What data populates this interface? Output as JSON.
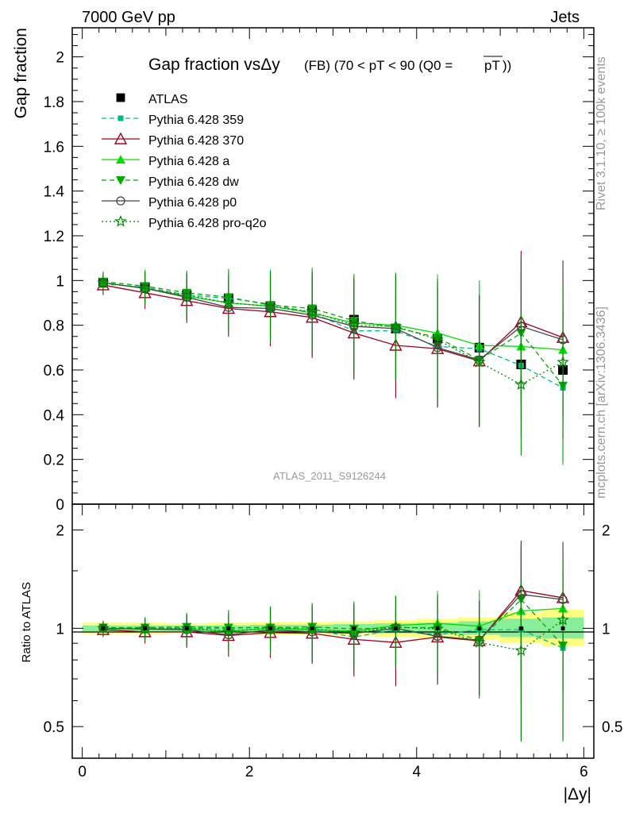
{
  "header": {
    "left": "7000 GeV pp",
    "right": "Jets",
    "side_rivet": "Rivet 3.1.10, ≥ 100k events",
    "side_mcplots": "mcplots.cern.ch [arXiv:1306.3436]"
  },
  "chart_data": [
    {
      "type": "line",
      "title_main": "Gap fraction vsΔy",
      "title_sub": "(FB) (70 < pT <  90 (Q0 =",
      "title_pt": "pT",
      "title_end": "))",
      "ylabel": "Gap fraction",
      "watermark": "ATLAS_2011_S9126244",
      "ylim": [
        0,
        2.13
      ],
      "y_ticks": [
        "0",
        "0.2",
        "0.4",
        "0.6",
        "0.8",
        "1",
        "1.2",
        "1.4",
        "1.6",
        "1.8",
        "2"
      ],
      "x": [
        0.25,
        0.75,
        1.25,
        1.75,
        2.25,
        2.75,
        3.25,
        3.75,
        4.25,
        4.75,
        5.25,
        5.75
      ],
      "legend_position": "top-left",
      "series": [
        {
          "name": "ATLAS",
          "color": "#000000",
          "marker": "square",
          "line": "none",
          "values": [
            0.99,
            0.97,
            0.935,
            0.92,
            0.885,
            0.865,
            0.825,
            0.785,
            0.74,
            0.7,
            0.625,
            0.6
          ]
        },
        {
          "name": "Pythia 6.428 359",
          "color": "#00bb88",
          "marker": "square-small",
          "line": "dashed",
          "values": [
            0.985,
            0.97,
            0.935,
            0.92,
            0.895,
            0.855,
            0.775,
            0.775,
            0.705,
            0.695,
            0.62,
            0.52
          ]
        },
        {
          "name": "Pythia 6.428 370",
          "color": "#a00020",
          "marker": "triangle-open",
          "line": "solid",
          "values": [
            0.98,
            0.945,
            0.91,
            0.875,
            0.86,
            0.835,
            0.765,
            0.71,
            0.695,
            0.64,
            0.815,
            0.745
          ]
        },
        {
          "name": "Pythia 6.428 a",
          "color": "#00dd00",
          "marker": "triangle-filled",
          "line": "solid",
          "values": [
            0.99,
            0.965,
            0.93,
            0.9,
            0.885,
            0.855,
            0.81,
            0.8,
            0.765,
            0.71,
            0.705,
            0.69
          ]
        },
        {
          "name": "Pythia 6.428 dw",
          "color": "#00aa00",
          "marker": "triangle-down",
          "line": "dashed",
          "values": [
            0.995,
            0.975,
            0.945,
            0.925,
            0.89,
            0.875,
            0.82,
            0.79,
            0.745,
            0.645,
            0.765,
            0.53
          ]
        },
        {
          "name": "Pythia 6.428 p0",
          "color": "#444444",
          "marker": "circle-open",
          "line": "solid",
          "values": [
            0.99,
            0.965,
            0.925,
            0.88,
            0.875,
            0.845,
            0.795,
            0.785,
            0.7,
            0.645,
            0.795,
            0.735
          ]
        },
        {
          "name": "Pythia 6.428 pro-q2o",
          "color": "#008800",
          "marker": "star-open",
          "line": "dotted",
          "values": [
            0.99,
            0.965,
            0.935,
            0.9,
            0.885,
            0.86,
            0.8,
            0.795,
            0.735,
            0.635,
            0.535,
            0.635
          ]
        }
      ]
    },
    {
      "type": "line",
      "ylabel": "Ratio to ATLAS",
      "xlabel": "|Δy|",
      "xlim": [
        -0.12,
        6.12
      ],
      "ylim_log": [
        0.4,
        2.4
      ],
      "y_ticks": [
        "0.5",
        "1",
        "2"
      ],
      "x_ticks": [
        "0",
        "2",
        "4",
        "6"
      ],
      "band_yellow": [
        [
          0.96,
          1.04
        ],
        [
          0.96,
          1.04
        ],
        [
          0.965,
          1.035
        ],
        [
          0.96,
          1.04
        ],
        [
          0.955,
          1.045
        ],
        [
          0.955,
          1.045
        ],
        [
          0.95,
          1.05
        ],
        [
          0.94,
          1.06
        ],
        [
          0.93,
          1.07
        ],
        [
          0.92,
          1.08
        ],
        [
          0.9,
          1.12
        ],
        [
          0.88,
          1.14
        ]
      ],
      "band_green": [
        [
          0.98,
          1.02
        ],
        [
          0.98,
          1.02
        ],
        [
          0.98,
          1.02
        ],
        [
          0.98,
          1.02
        ],
        [
          0.975,
          1.025
        ],
        [
          0.975,
          1.025
        ],
        [
          0.97,
          1.03
        ],
        [
          0.965,
          1.035
        ],
        [
          0.96,
          1.04
        ],
        [
          0.955,
          1.05
        ],
        [
          0.94,
          1.07
        ],
        [
          0.93,
          1.08
        ]
      ],
      "series_ratio": [
        [
          0.995,
          1.0,
          1.0,
          1.0,
          1.01,
          0.99,
          0.94,
          0.99,
          0.955,
          0.99,
          0.99,
          0.87
        ],
        [
          0.99,
          0.975,
          0.975,
          0.95,
          0.97,
          0.965,
          0.925,
          0.905,
          0.94,
          0.915,
          1.305,
          1.24
        ],
        [
          1.0,
          0.995,
          0.995,
          0.98,
          1.0,
          0.99,
          0.98,
          1.02,
          1.035,
          1.015,
          1.13,
          1.15
        ],
        [
          1.005,
          1.005,
          1.01,
          1.005,
          1.005,
          1.01,
          0.995,
          1.005,
          1.005,
          0.92,
          1.225,
          0.885
        ],
        [
          1.0,
          0.995,
          0.99,
          0.955,
          0.99,
          0.975,
          0.965,
          1.0,
          0.945,
          0.92,
          1.27,
          1.225
        ],
        [
          1.0,
          0.995,
          1.0,
          0.98,
          1.0,
          0.995,
          0.97,
          1.01,
          0.995,
          0.905,
          0.855,
          1.06
        ]
      ]
    }
  ]
}
